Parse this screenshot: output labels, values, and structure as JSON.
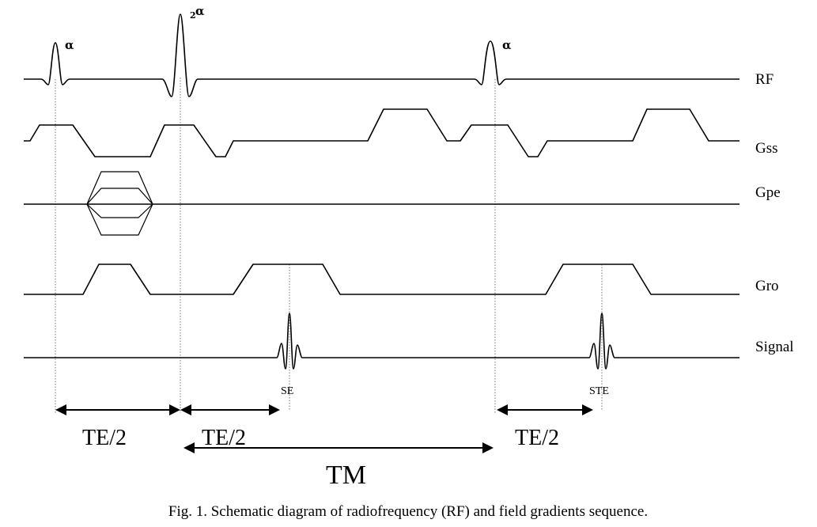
{
  "rows": {
    "rf": "RF",
    "gss": "Gss",
    "gpe": "Gpe",
    "gro": "Gro",
    "signal": "Signal"
  },
  "pulses": {
    "first": "α",
    "second_prefix": "2",
    "second": "α",
    "third": "α"
  },
  "echoes": {
    "spin_echo": "SE",
    "stimulated_echo": "STE"
  },
  "intervals": {
    "te1": "TE/2",
    "te2": "TE/2",
    "te3": "TE/2",
    "tm": "TM"
  },
  "caption": "Fig. 1. Schematic diagram of radiofrequency (RF) and field gradients sequence."
}
